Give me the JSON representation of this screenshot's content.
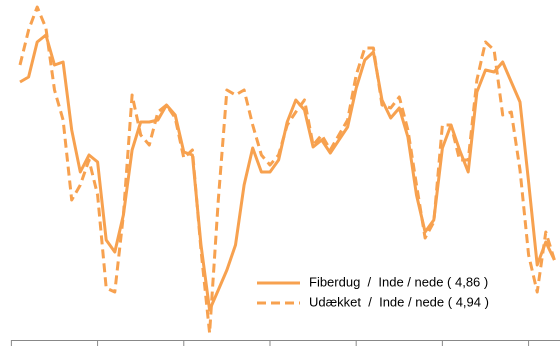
{
  "chart_data": {
    "type": "line",
    "categories": [
      null,
      null,
      null,
      null,
      null,
      null,
      null,
      null,
      null,
      null,
      null,
      null,
      null,
      null,
      null,
      null,
      null,
      null,
      null,
      null,
      null,
      null,
      null,
      null,
      null,
      null,
      null,
      null,
      null,
      null,
      null,
      null,
      null,
      null,
      null,
      null,
      null,
      null,
      null,
      null,
      null,
      null,
      null,
      null,
      null,
      null,
      null,
      null,
      null,
      null,
      null,
      null,
      null,
      null,
      null,
      null,
      null,
      null,
      null,
      null,
      null,
      null,
      null
    ],
    "series": [
      {
        "name": "Fiberdug  /  Inde / nede ( 4,86 )",
        "color": "#f7a14f",
        "dash": "solid",
        "values": [
          258,
          263,
          298,
          305,
          275,
          278,
          210,
          168,
          185,
          178,
          100,
          88,
          125,
          190,
          218,
          218,
          220,
          235,
          225,
          188,
          185,
          95,
          30,
          50,
          70,
          95,
          155,
          192,
          168,
          168,
          180,
          218,
          240,
          230,
          193,
          200,
          187,
          200,
          213,
          252,
          280,
          288,
          240,
          222,
          232,
          203,
          145,
          108,
          120,
          192,
          215,
          190,
          168,
          248,
          270,
          268,
          278,
          258,
          238,
          158,
          75,
          98,
          80
        ]
      },
      {
        "name": "Udækket  /  Inde / nede ( 4,94 )",
        "color": "#f7a14f",
        "dash": "dashed",
        "values": [
          275,
          310,
          333,
          312,
          250,
          220,
          140,
          155,
          180,
          145,
          52,
          48,
          125,
          245,
          205,
          195,
          228,
          235,
          222,
          182,
          190,
          90,
          7,
          140,
          250,
          245,
          250,
          215,
          185,
          175,
          185,
          215,
          228,
          240,
          195,
          205,
          190,
          205,
          220,
          265,
          292,
          292,
          235,
          232,
          243,
          210,
          155,
          102,
          118,
          215,
          215,
          180,
          180,
          260,
          298,
          290,
          225,
          228,
          170,
          85,
          48,
          108,
          80
        ]
      }
    ],
    "ylim": [
      0,
      340
    ],
    "legend": "lower right"
  }
}
